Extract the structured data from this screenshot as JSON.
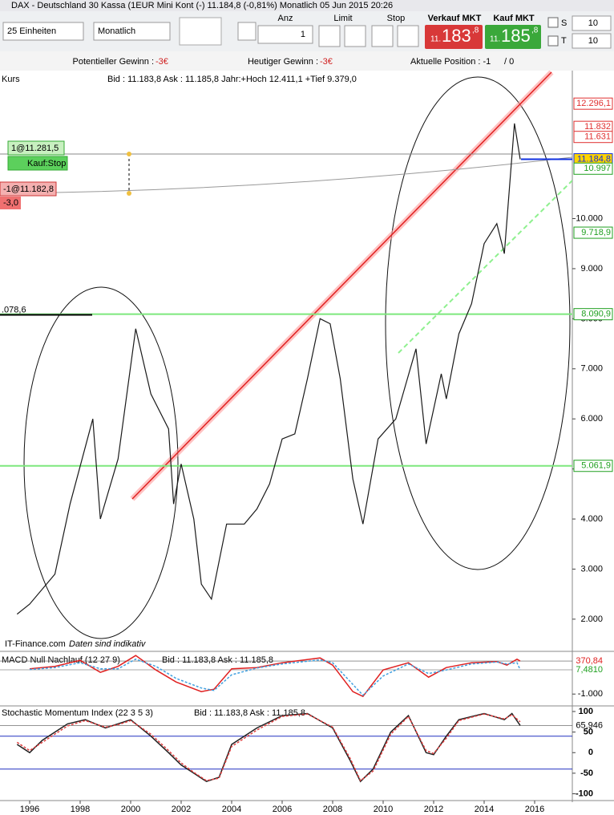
{
  "window": {
    "title": "DAX - Deutschland 30 Kassa (1EUR Mini Kont (-)    11.184,8 (-0,81%)    Monatlich  05 Jun 2015 20:26"
  },
  "toolbar": {
    "units": "25 Einheiten",
    "period": "Monatlich",
    "qty_label": "Anz",
    "qty": "1",
    "limit": "Limit",
    "stop": "Stop",
    "sell_label": "Verkauf MKT",
    "sell": {
      "small": "11.",
      "big": "183",
      "frac": ",8"
    },
    "buy_label": "Kauf MKT",
    "buy": {
      "small": "11.",
      "big": "185",
      "frac": ",8"
    },
    "s_label": "S",
    "s_value": "10",
    "t_label": "T",
    "t_value": "10"
  },
  "status": {
    "potential_label": "Potentieller Gewinn : ",
    "potential": "-3€",
    "today_label": "Heutiger Gewinn : ",
    "today": "-3€",
    "position_label": "Aktuelle Position : -1",
    "position_rest": "/ 0"
  },
  "info": {
    "kurs": "Kurs",
    "quote": "Bid : 11.183,8 Ask : 11.185,8 Jahr:+Hoch 12.411,1 +Tief 9.379,0",
    "source": "IT-Finance.com",
    "note": "Daten sind indikativ"
  },
  "orders": {
    "buy_stop": "1@11.281,5",
    "buy_stop_type": "Kauf:Stop",
    "position": "-1@11.182,8",
    "pl": "-3,0"
  },
  "chart_data": [
    {
      "type": "line",
      "color": "#1a1a1a",
      "x": [
        1995.5,
        1996,
        1997,
        1997.6,
        1998.5,
        1998.8,
        1999.5,
        2000.2,
        2000.8,
        2001.5,
        2001.7,
        2002,
        2002.5,
        2002.8,
        2003.2,
        2003.8,
        2004.5,
        2005,
        2005.5,
        2006,
        2006.5,
        2007,
        2007.5,
        2007.9,
        2008.3,
        2008.8,
        2009.2,
        2009.8,
        2010.5,
        2011.3,
        2011.7,
        2012.3,
        2012.5,
        2013,
        2013.5,
        2014,
        2014.5,
        2014.8,
        2015.2,
        2015.43
      ],
      "values": [
        2100,
        2300,
        2900,
        4300,
        6000,
        4000,
        5200,
        7800,
        6500,
        5800,
        4300,
        5100,
        4000,
        2700,
        2400,
        3900,
        3900,
        4200,
        4700,
        5600,
        5700,
        6800,
        8000,
        7900,
        6800,
        4800,
        3900,
        5600,
        6000,
        7400,
        5500,
        6900,
        6400,
        7700,
        8300,
        9500,
        9900,
        9300,
        11900,
        11184.8
      ],
      "xlim": [
        1994.825,
        2017.492
      ],
      "ylim": [
        1357,
        12956
      ],
      "yticks": [
        {
          "value": 2000,
          "label": "2.000"
        },
        {
          "value": 3000,
          "label": "3.000"
        },
        {
          "value": 4000,
          "label": "4.000"
        },
        {
          "value": 5000,
          "label": "5.000"
        },
        {
          "value": 6000,
          "label": "6.000"
        },
        {
          "value": 7000,
          "label": "7.000"
        },
        {
          "value": 8000,
          "label": "8.000"
        },
        {
          "value": 9000,
          "label": "9.000"
        },
        {
          "value": 10000,
          "label": "10.000"
        }
      ],
      "price_labels": [
        {
          "value": 12296.1,
          "label": "12.296,1",
          "color": "#e03030"
        },
        {
          "value": 11832,
          "label": "11.832",
          "color": "#e03030"
        },
        {
          "value": 11631,
          "label": "11.631",
          "color": "#e03030"
        },
        {
          "value": 11184.8,
          "label": "11.184,8",
          "color": "#1030e0",
          "fill": "#ffd400",
          "line_color": "#1030e0"
        },
        {
          "value": 10997,
          "label": "10.997",
          "color": "#20a020"
        },
        {
          "value": 9718.9,
          "label": "9.718,9",
          "color": "#20a020"
        },
        {
          "value": 8090.9,
          "label": "8.090,9",
          "color": "#20a020",
          "line_color": "#7de87d"
        },
        {
          "value": 5061.9,
          "label": "5.061,9",
          "color": "#20a020",
          "line_color": "#7de87d"
        }
      ],
      "left_levels": [
        {
          "value": 8078.6,
          "label": ".078,6",
          "color": "#000000"
        }
      ]
    },
    {
      "type": "line",
      "title": "MACD Null Nachlauf (12 27 9)",
      "quote": "Bid : 11.183,8 Ask : 11.185,8",
      "x": [
        1996,
        1997,
        1998,
        1998.8,
        1999.5,
        2000.2,
        2001,
        2001.8,
        2002.8,
        2003.3,
        2004,
        2005,
        2006,
        2007.5,
        2008,
        2008.8,
        2009.2,
        2010,
        2011,
        2011.8,
        2012.5,
        2013.5,
        2014.5,
        2014.9,
        2015.3,
        2015.43
      ],
      "series": [
        {
          "color": "#e02020",
          "values": [
            50,
            150,
            400,
            -100,
            150,
            600,
            0,
            -500,
            -900,
            -800,
            50,
            100,
            300,
            500,
            200,
            -900,
            -1100,
            0,
            300,
            -300,
            100,
            300,
            350,
            200,
            450,
            370.84
          ]
        },
        {
          "color": "#40a0e0",
          "values": [
            20,
            100,
            300,
            50,
            50,
            450,
            150,
            -350,
            -750,
            -850,
            -200,
            80,
            250,
            420,
            300,
            -600,
            -1050,
            -250,
            250,
            -150,
            0,
            250,
            330,
            250,
            300,
            7.481
          ]
        }
      ],
      "xlim": [
        1994.825,
        2017.492
      ],
      "ylim": [
        -1426,
        774
      ],
      "yticks": [
        {
          "value": -1000,
          "label": "-1.000"
        }
      ],
      "value_marks": [
        {
          "value": 370.84,
          "label": "370,84",
          "color": "#e02020"
        },
        {
          "value": 7.481,
          "label": "7,4810",
          "color": "#20a020"
        }
      ]
    },
    {
      "type": "line",
      "title": "Stochastic Momentum Index (22 3 5 3)",
      "quote": "Bid : 11.183,8 Ask : 11.185,8",
      "x": [
        1995.5,
        1996,
        1996.5,
        1997.5,
        1998.2,
        1999,
        1999.5,
        2000,
        2000.8,
        2001.5,
        2002,
        2002.5,
        2003,
        2003.5,
        2004,
        2005,
        2006,
        2007,
        2008,
        2008.7,
        2009.1,
        2009.6,
        2010.3,
        2011,
        2011.7,
        2012,
        2012.5,
        2013,
        2014,
        2014.8,
        2015.1,
        2015.43
      ],
      "series": [
        {
          "color": "#202020",
          "values": [
            20,
            0,
            30,
            70,
            80,
            60,
            70,
            80,
            40,
            0,
            -30,
            -50,
            -70,
            -60,
            20,
            60,
            90,
            95,
            60,
            -20,
            -70,
            -40,
            50,
            90,
            0,
            -5,
            40,
            80,
            95,
            80,
            95,
            65.946
          ]
        },
        {
          "color": "#e04040",
          "values": [
            25,
            5,
            25,
            65,
            78,
            62,
            68,
            78,
            45,
            5,
            -25,
            -48,
            -68,
            -62,
            15,
            55,
            88,
            94,
            62,
            -15,
            -68,
            -45,
            45,
            88,
            5,
            -2,
            35,
            78,
            94,
            82,
            92,
            75
          ]
        }
      ],
      "levels": [
        40,
        -40
      ],
      "xlim": [
        1994.825,
        2017.492
      ],
      "ylim": [
        -116.5,
        113.6
      ],
      "yticks": [
        100,
        50,
        0,
        -50,
        -100
      ],
      "xticks": [
        1996,
        1998,
        2000,
        2002,
        2004,
        2006,
        2008,
        2010,
        2012,
        2014,
        2016
      ],
      "value_marks": [
        {
          "value": 65.946,
          "label": "65,946",
          "color": "#000000"
        }
      ]
    }
  ]
}
